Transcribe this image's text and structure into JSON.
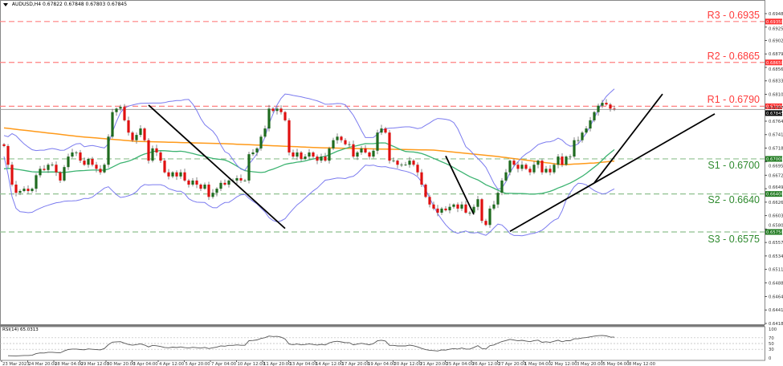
{
  "header": {
    "symbol": "AUDUSD,H4",
    "open": "0.67822",
    "high": "0.67848",
    "low": "0.67803",
    "close": "0.67845"
  },
  "levels": [
    {
      "name": "R3",
      "label": "R3 - 0.6935",
      "price": 0.6935,
      "axis_box": "0.69350",
      "type": "resistance"
    },
    {
      "name": "R2",
      "label": "R2 - 0.6865",
      "price": 0.6865,
      "axis_box": "0.68650",
      "type": "resistance"
    },
    {
      "name": "R1",
      "label": "R1 - 0.6790",
      "price": 0.679,
      "axis_box": "0.67900",
      "type": "resistance"
    },
    {
      "name": "S1",
      "label": "S1 - 0.6700",
      "price": 0.67,
      "axis_box": "0.67000",
      "type": "support"
    },
    {
      "name": "S2",
      "label": "S2 - 0.6640",
      "price": 0.664,
      "axis_box": "0.66400",
      "type": "support"
    },
    {
      "name": "S3",
      "label": "S3 - 0.6575",
      "price": 0.6575,
      "axis_box": "0.65750",
      "type": "support"
    }
  ],
  "colors": {
    "resistance": "#ff4040",
    "support": "#2f8a2f",
    "bull_candle": "#1f6b1f",
    "bear_candle": "#e01010",
    "bollinger": "#7b7bef",
    "ma_fast": "#3cb371",
    "ma_slow": "#ff9a1a",
    "trendline": "#000000",
    "current_price_line": "#a0a0a0"
  },
  "chart_data": {
    "type": "candlestick",
    "title": "AUDUSD,H4",
    "current_price": 0.67845,
    "current_price_label": "0.67845",
    "ylim": [
      0.64185,
      0.69485
    ],
    "y_ticks": [
      "0.69485",
      "0.69255",
      "0.69025",
      "0.68795",
      "0.68565",
      "0.68335",
      "0.68105",
      "0.67875",
      "0.67645",
      "0.67415",
      "0.67185",
      "0.66950",
      "0.66720",
      "0.66490",
      "0.66260",
      "0.66030",
      "0.65800",
      "0.65570",
      "0.65340",
      "0.65110",
      "0.64880",
      "0.64645",
      "0.64415",
      "0.64185"
    ],
    "x_ticks": [
      "23 Mar 2023",
      "24 Mar 20:00",
      "28 Mar 04:00",
      "29 Mar 12:00",
      "30 Mar 20:00",
      "3 Apr 04:00",
      "4 Apr 12:00",
      "5 Apr 20:00",
      "7 Apr 04:00",
      "10 Apr 12:00",
      "11 Apr 20:00",
      "13 Apr 04:00",
      "14 Apr 12:00",
      "17 Apr 20:00",
      "19 Apr 04:00",
      "20 Apr 12:00",
      "21 Apr 20:00",
      "25 Apr 04:00",
      "26 Apr 12:00",
      "27 Apr 20:00",
      "1 May 04:00",
      "2 May 12:00",
      "3 May 20:00",
      "5 May 04:00",
      "8 May 12:00"
    ],
    "closes": [
      0.6722,
      0.669,
      0.6656,
      0.6642,
      0.6645,
      0.6649,
      0.6645,
      0.6649,
      0.6672,
      0.6683,
      0.6681,
      0.669,
      0.669,
      0.6677,
      0.6663,
      0.6686,
      0.6704,
      0.6711,
      0.6711,
      0.6697,
      0.669,
      0.67,
      0.669,
      0.6683,
      0.6677,
      0.669,
      0.6738,
      0.678,
      0.6786,
      0.6789,
      0.6766,
      0.6745,
      0.6732,
      0.6741,
      0.6752,
      0.6732,
      0.6697,
      0.6718,
      0.6711,
      0.6697,
      0.6677,
      0.667,
      0.6677,
      0.667,
      0.6677,
      0.6663,
      0.6656,
      0.6663,
      0.6656,
      0.6649,
      0.6656,
      0.6635,
      0.6642,
      0.6649,
      0.6659,
      0.6656,
      0.6663,
      0.6663,
      0.6667,
      0.6663,
      0.6663,
      0.6708,
      0.6711,
      0.6718,
      0.6738,
      0.6752,
      0.6786,
      0.6782,
      0.6786,
      0.678,
      0.6766,
      0.6711,
      0.6704,
      0.6711,
      0.67,
      0.6704,
      0.6711,
      0.6704,
      0.6697,
      0.6704,
      0.6697,
      0.6718,
      0.6732,
      0.6738,
      0.6732,
      0.6725,
      0.6725,
      0.6704,
      0.6711,
      0.6718,
      0.6711,
      0.6704,
      0.6714,
      0.6745,
      0.6752,
      0.6745,
      0.6697,
      0.6697,
      0.669,
      0.669,
      0.669,
      0.6697,
      0.669,
      0.6677,
      0.6656,
      0.6635,
      0.6622,
      0.6615,
      0.6608,
      0.6615,
      0.6612,
      0.6618,
      0.6622,
      0.6615,
      0.6622,
      0.6608,
      0.6608,
      0.6618,
      0.6631,
      0.6594,
      0.6587,
      0.6615,
      0.6622,
      0.6642,
      0.6663,
      0.6677,
      0.6697,
      0.669,
      0.6683,
      0.669,
      0.6683,
      0.6677,
      0.669,
      0.6697,
      0.6677,
      0.6683,
      0.6677,
      0.669,
      0.6704,
      0.669,
      0.6704,
      0.6704,
      0.6732,
      0.6732,
      0.6745,
      0.6752,
      0.6766,
      0.678,
      0.6791,
      0.6796,
      0.6793,
      0.6786,
      0.6785
    ],
    "ma_slow": {
      "bars": [
        0,
        19,
        33,
        55,
        79,
        107,
        123,
        139,
        147,
        153,
        159
      ],
      "values": [
        0.6753,
        0.6738,
        0.673,
        0.6726,
        0.6719,
        0.6715,
        0.6704,
        0.669,
        0.6693,
        0.6697,
        0.6701
      ]
    },
    "trendlines": [
      {
        "from": [
          36,
          0.6792
        ],
        "to": [
          70,
          0.6581
        ]
      },
      {
        "from": [
          110,
          0.6705
        ],
        "to": [
          117,
          0.6605
        ]
      },
      {
        "from": [
          126,
          0.6576
        ],
        "to": [
          177,
          0.6777
        ]
      },
      {
        "from": [
          147,
          0.6659
        ],
        "to": [
          164,
          0.6811
        ]
      }
    ],
    "indicators": [
      "Bollinger Bands",
      "Moving Average (fast)",
      "Moving Average (slow)"
    ],
    "rsi": {
      "label": "RSI(14) 65.0313",
      "period": 14,
      "levels": [
        "100",
        "70",
        "50",
        "30",
        "0"
      ],
      "ylim": [
        0,
        100
      ]
    }
  }
}
